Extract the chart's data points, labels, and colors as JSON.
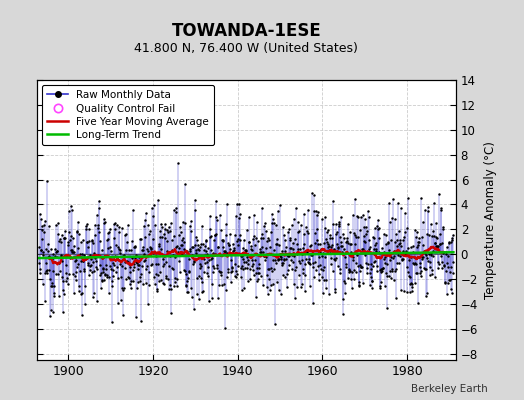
{
  "title": "TOWANDA-1ESE",
  "subtitle": "41.800 N, 76.400 W (United States)",
  "ylabel": "Temperature Anomaly (°C)",
  "credit": "Berkeley Earth",
  "year_start": 1893,
  "year_end": 1990,
  "ylim": [
    -8.5,
    14
  ],
  "yticks": [
    -8,
    -6,
    -4,
    -2,
    0,
    2,
    4,
    6,
    8,
    10,
    12,
    14
  ],
  "xticks": [
    1900,
    1920,
    1940,
    1960,
    1980
  ],
  "fig_bg_color": "#d8d8d8",
  "plot_bg_color": "#ffffff",
  "line_color": "#3333cc",
  "marker_color": "#000000",
  "moving_avg_color": "#cc0000",
  "trend_color": "#00bb00",
  "qc_fail_color": "#ff44ff",
  "grid_color": "#cccccc",
  "n_months": 1164,
  "seed": 12345
}
